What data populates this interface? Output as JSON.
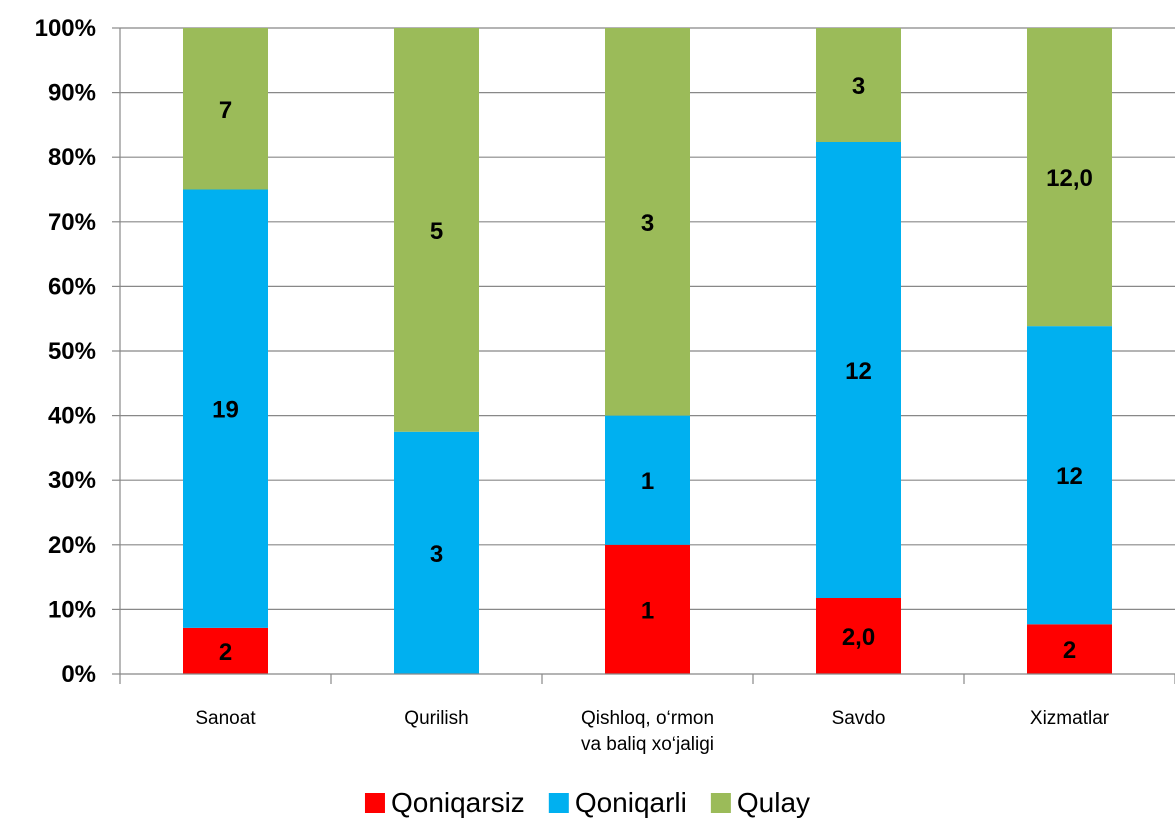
{
  "chart_data": {
    "type": "bar",
    "stacked": "percent",
    "categories": [
      [
        "Sanoat"
      ],
      [
        "Qurilish"
      ],
      [
        "Qishloq, o‘rmon",
        "va baliq xo‘jaligi"
      ],
      [
        "Savdo"
      ],
      [
        "Xizmatlar"
      ]
    ],
    "series": [
      {
        "name": "Qoniqarsiz",
        "color": "#ff0000",
        "values": [
          2,
          0,
          1,
          2.0,
          2
        ],
        "labels": [
          "2",
          "",
          "1",
          "2,0",
          "2"
        ]
      },
      {
        "name": "Qoniqarli",
        "color": "#00b0f0",
        "values": [
          19,
          3,
          1,
          12,
          12
        ],
        "labels": [
          "19",
          "3",
          "1",
          "12",
          "12"
        ]
      },
      {
        "name": "Qulay",
        "color": "#9bbb59",
        "values": [
          7,
          5,
          3,
          3,
          12.0
        ],
        "labels": [
          "7",
          "5",
          "3",
          "3",
          "12,0"
        ]
      }
    ],
    "y_ticks": [
      "0%",
      "10%",
      "20%",
      "30%",
      "40%",
      "50%",
      "60%",
      "70%",
      "80%",
      "90%",
      "100%"
    ],
    "ylim": [
      0,
      100
    ],
    "grid": true,
    "legend_position": "bottom"
  }
}
